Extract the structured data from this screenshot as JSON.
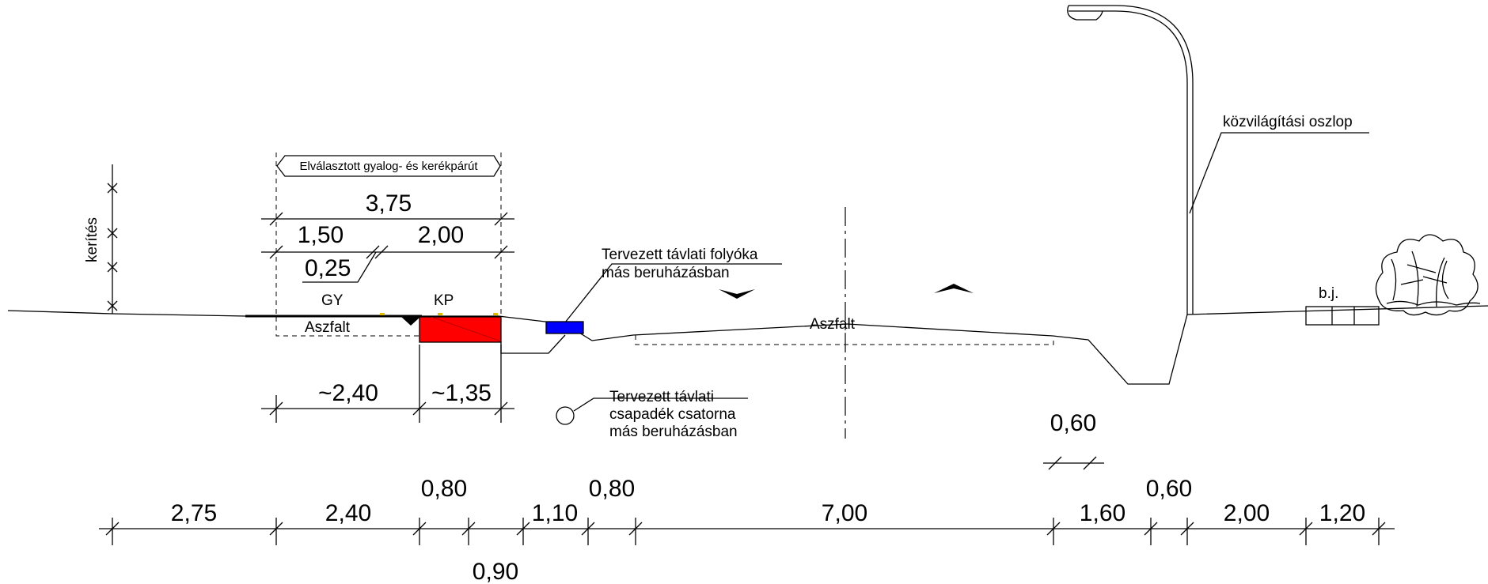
{
  "labels": {
    "kerites": "kerítés",
    "path_box": "Elválasztott gyalog- és kerékpárút",
    "gy": "GY",
    "kp": "KP",
    "asphalt_left": "Aszfalt",
    "asphalt_road": "Aszfalt",
    "gutter_line1": "Tervezett távlati folyóka",
    "gutter_line2": "más beruházásban",
    "sewer_line1": "Tervezett távlati",
    "sewer_line2": "csapadék csatorna",
    "sewer_line3": "más beruházásban",
    "lamp": "közvilágítási oszlop",
    "bj": "b.j."
  },
  "dims_top": {
    "total": "3,75",
    "walk": "1,50",
    "bike": "2,00",
    "sep": "0,25",
    "left_part": "~2,40",
    "right_part": "~1,35"
  },
  "dims_bottom": {
    "d1": "2,75",
    "d2": "2,40",
    "d3": "0,80",
    "d4": "0,90",
    "d5": "1,10",
    "d6": "0,80",
    "d7": "7,00",
    "d8": "1,60",
    "d9": "0,60",
    "d10": "2,00",
    "d11": "1,20",
    "ditch": "0,60"
  },
  "colors": {
    "red_strip": "#ff0000",
    "blue_gutter": "#0000ff",
    "accent_yellow": "#e8b800"
  }
}
